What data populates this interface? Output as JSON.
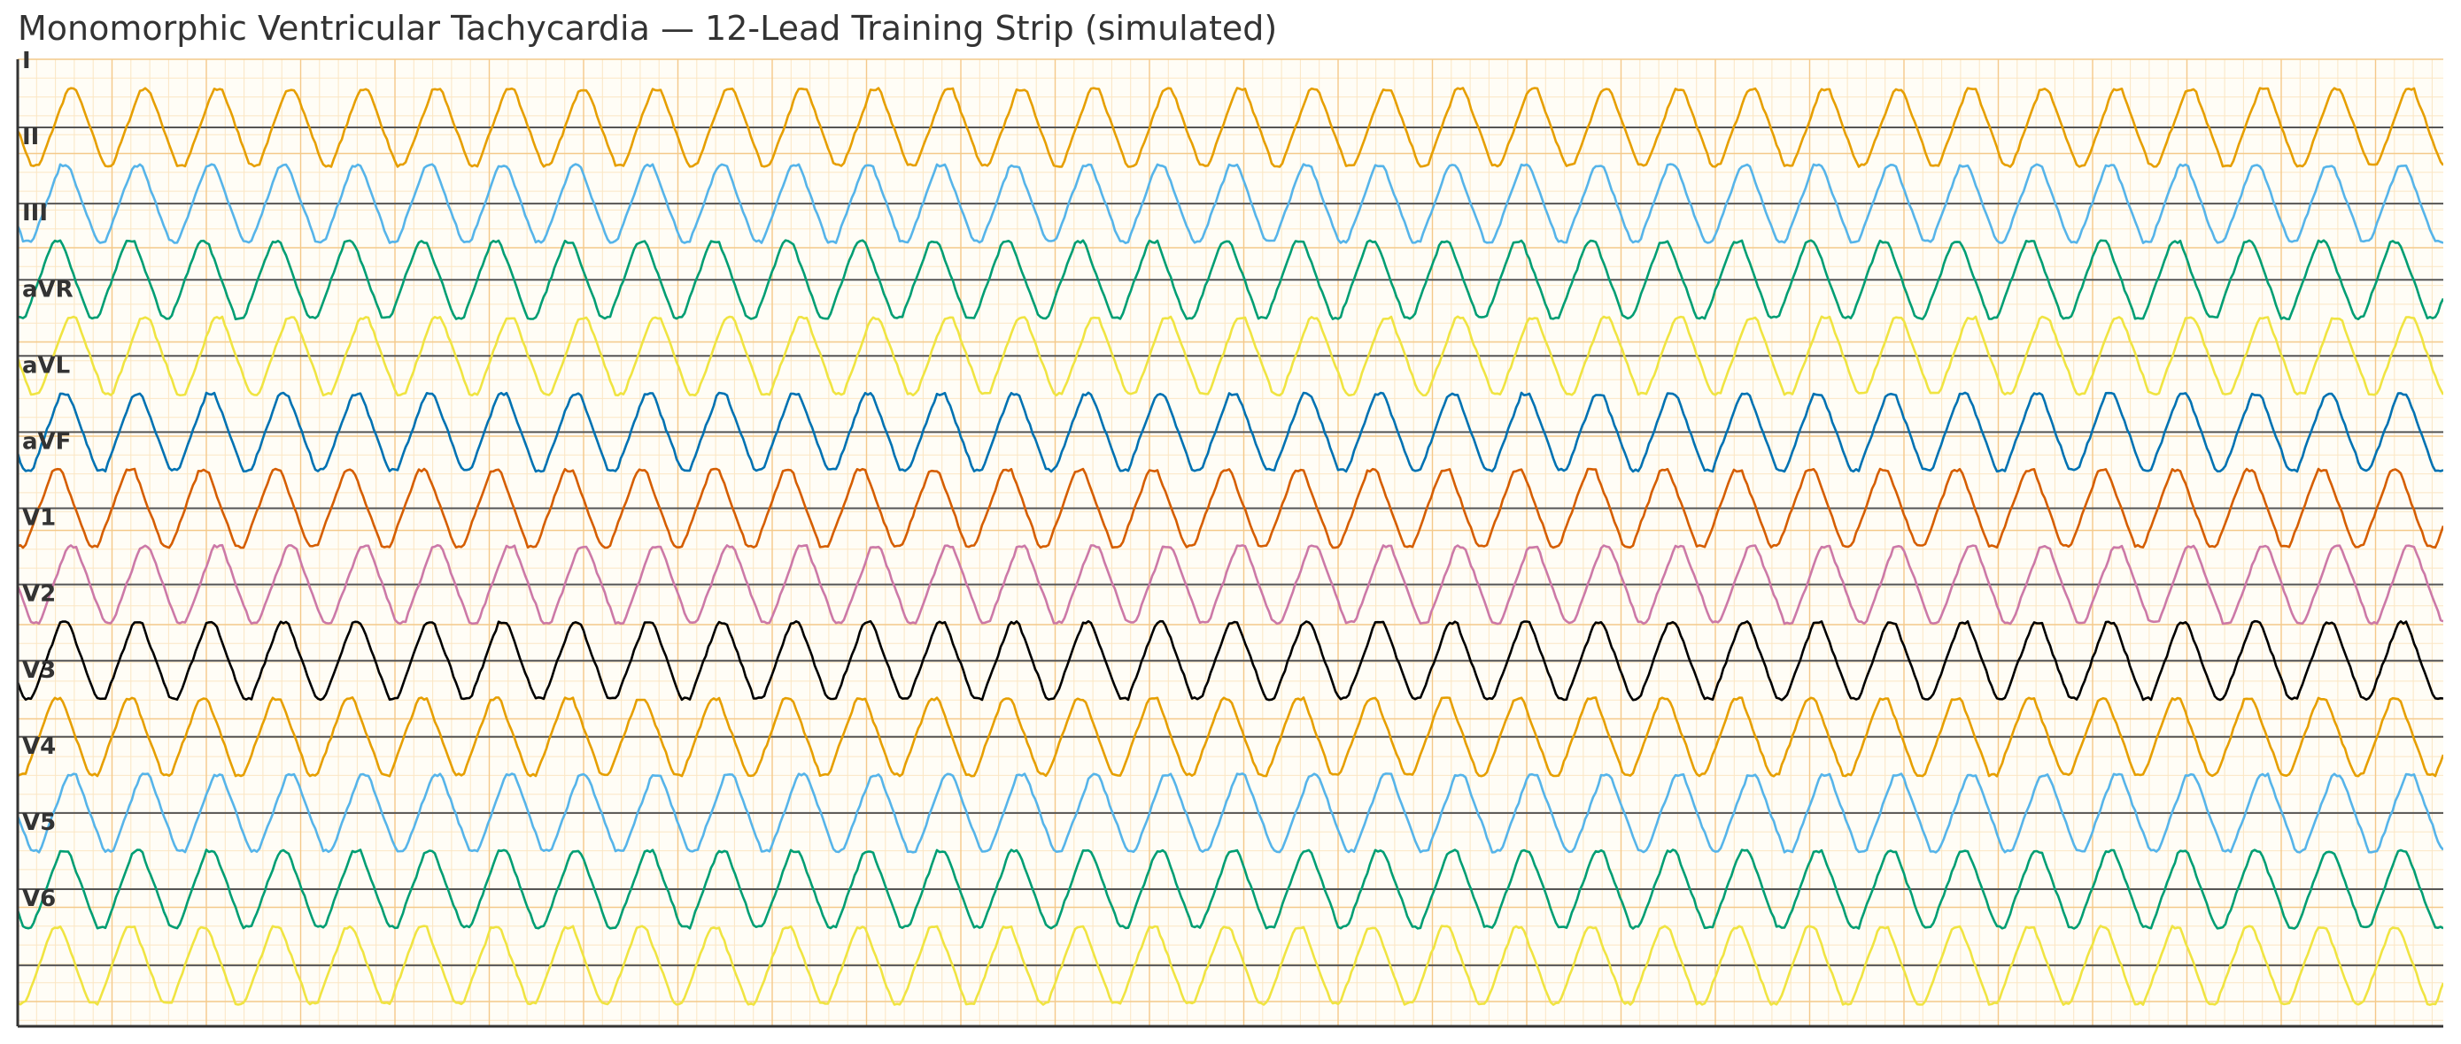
{
  "title": "Monomorphic Ventricular Tachycardia — 12-Lead Training Strip (simulated)",
  "chart_data": {
    "type": "line",
    "title": "Monomorphic Ventricular Tachycardia — 12-Lead Training Strip (simulated)",
    "xlabel": "",
    "ylabel": "",
    "x_range": [
      0,
      10
    ],
    "grid": true,
    "grid_colors": {
      "minor": "#fbe6c3",
      "major": "#f4c98a",
      "background": "#fffdf6",
      "baseline": "#555555"
    },
    "waveform": {
      "cycles_in_strip": 33.2,
      "amplitude_relative_to_lead_spacing": 0.5,
      "shape": "trapezoidal wide-complex, monomorphic"
    },
    "leads": [
      {
        "name": "I",
        "color": "#E69F00",
        "phase": 0.0
      },
      {
        "name": "II",
        "color": "#56B4E9",
        "phase": 0.1
      },
      {
        "name": "III",
        "color": "#009E73",
        "phase": 0.2
      },
      {
        "name": "aVR",
        "color": "#F0E442",
        "phase": 0.0
      },
      {
        "name": "aVL",
        "color": "#0072B2",
        "phase": 0.1
      },
      {
        "name": "aVF",
        "color": "#D55E00",
        "phase": 0.2
      },
      {
        "name": "V1",
        "color": "#CC79A7",
        "phase": 0.0
      },
      {
        "name": "V2",
        "color": "#000000",
        "phase": 0.1
      },
      {
        "name": "V3",
        "color": "#E69F00",
        "phase": 0.2
      },
      {
        "name": "V4",
        "color": "#56B4E9",
        "phase": 0.0
      },
      {
        "name": "V5",
        "color": "#009E73",
        "phase": 0.1
      },
      {
        "name": "V6",
        "color": "#F0E442",
        "phase": 0.2
      }
    ]
  }
}
